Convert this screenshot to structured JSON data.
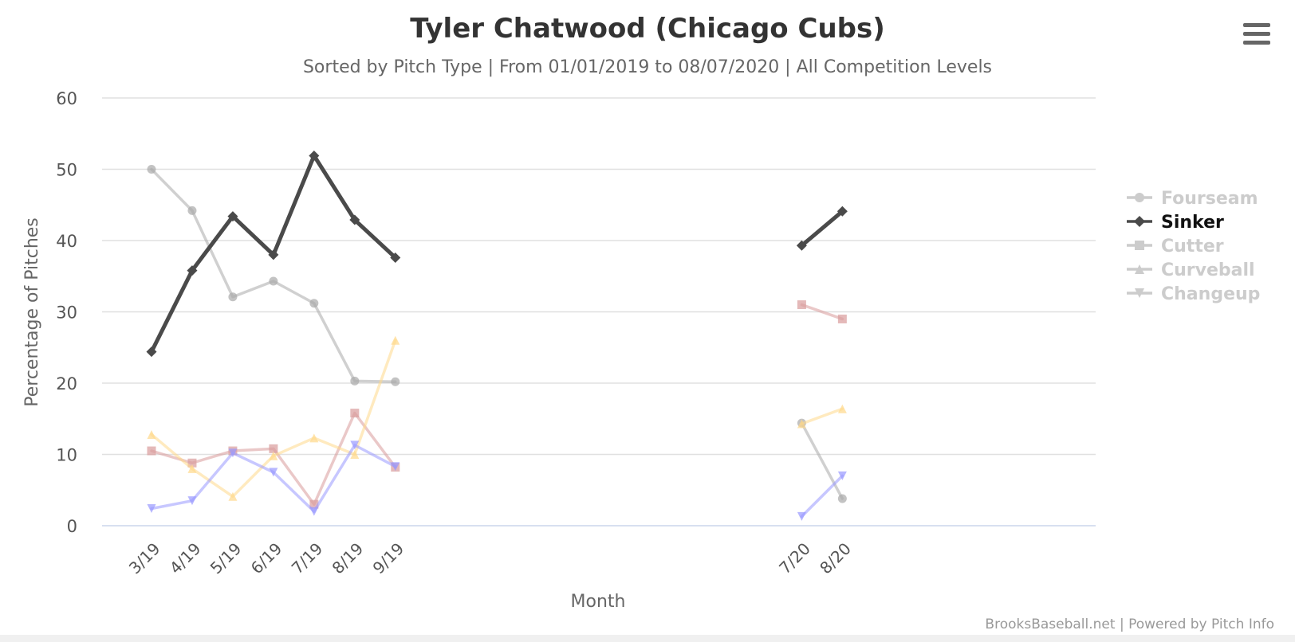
{
  "menu_icon": "hamburger-menu-icon",
  "credits": "BrooksBaseball.net | Powered by Pitch Info",
  "chart_data": {
    "type": "line",
    "title": "Tyler Chatwood (Chicago Cubs)",
    "subtitle": "Sorted by Pitch Type | From 01/01/2019 to 08/07/2020 | All Competition Levels",
    "xlabel": "Month",
    "ylabel": "Percentage of Pitches",
    "ylim": [
      0,
      60
    ],
    "yticks": [
      0,
      10,
      20,
      30,
      40,
      50,
      60
    ],
    "grid": true,
    "legend_position": "right",
    "categories": [
      "3/19",
      "4/19",
      "5/19",
      "6/19",
      "7/19",
      "8/19",
      "9/19",
      "7/20",
      "8/20"
    ],
    "series": [
      {
        "name": "Fourseam",
        "color": "#aaaaaa",
        "marker": "circle",
        "active": false,
        "values": [
          50.0,
          44.2,
          32.1,
          34.3,
          31.2,
          20.3,
          20.2,
          14.4,
          3.8
        ]
      },
      {
        "name": "Sinker",
        "color": "#4a4a4a",
        "marker": "diamond",
        "active": true,
        "values": [
          24.4,
          35.8,
          43.4,
          38.0,
          51.9,
          42.9,
          37.6,
          39.3,
          44.1
        ]
      },
      {
        "name": "Cutter",
        "color": "#d99b9b",
        "marker": "square",
        "active": false,
        "values": [
          10.5,
          8.8,
          10.5,
          10.8,
          3.0,
          15.8,
          8.2,
          31.0,
          29.0
        ]
      },
      {
        "name": "Curveball",
        "color": "#ffd98a",
        "marker": "triangle",
        "active": false,
        "values": [
          12.8,
          8.0,
          4.1,
          9.8,
          12.3,
          10.0,
          26.0,
          14.3,
          16.4
        ]
      },
      {
        "name": "Changeup",
        "color": "#9999ff",
        "marker": "triangle-down",
        "active": false,
        "values": [
          2.4,
          3.5,
          10.2,
          7.5,
          2.0,
          11.3,
          8.3,
          1.3,
          7.0
        ]
      }
    ]
  }
}
